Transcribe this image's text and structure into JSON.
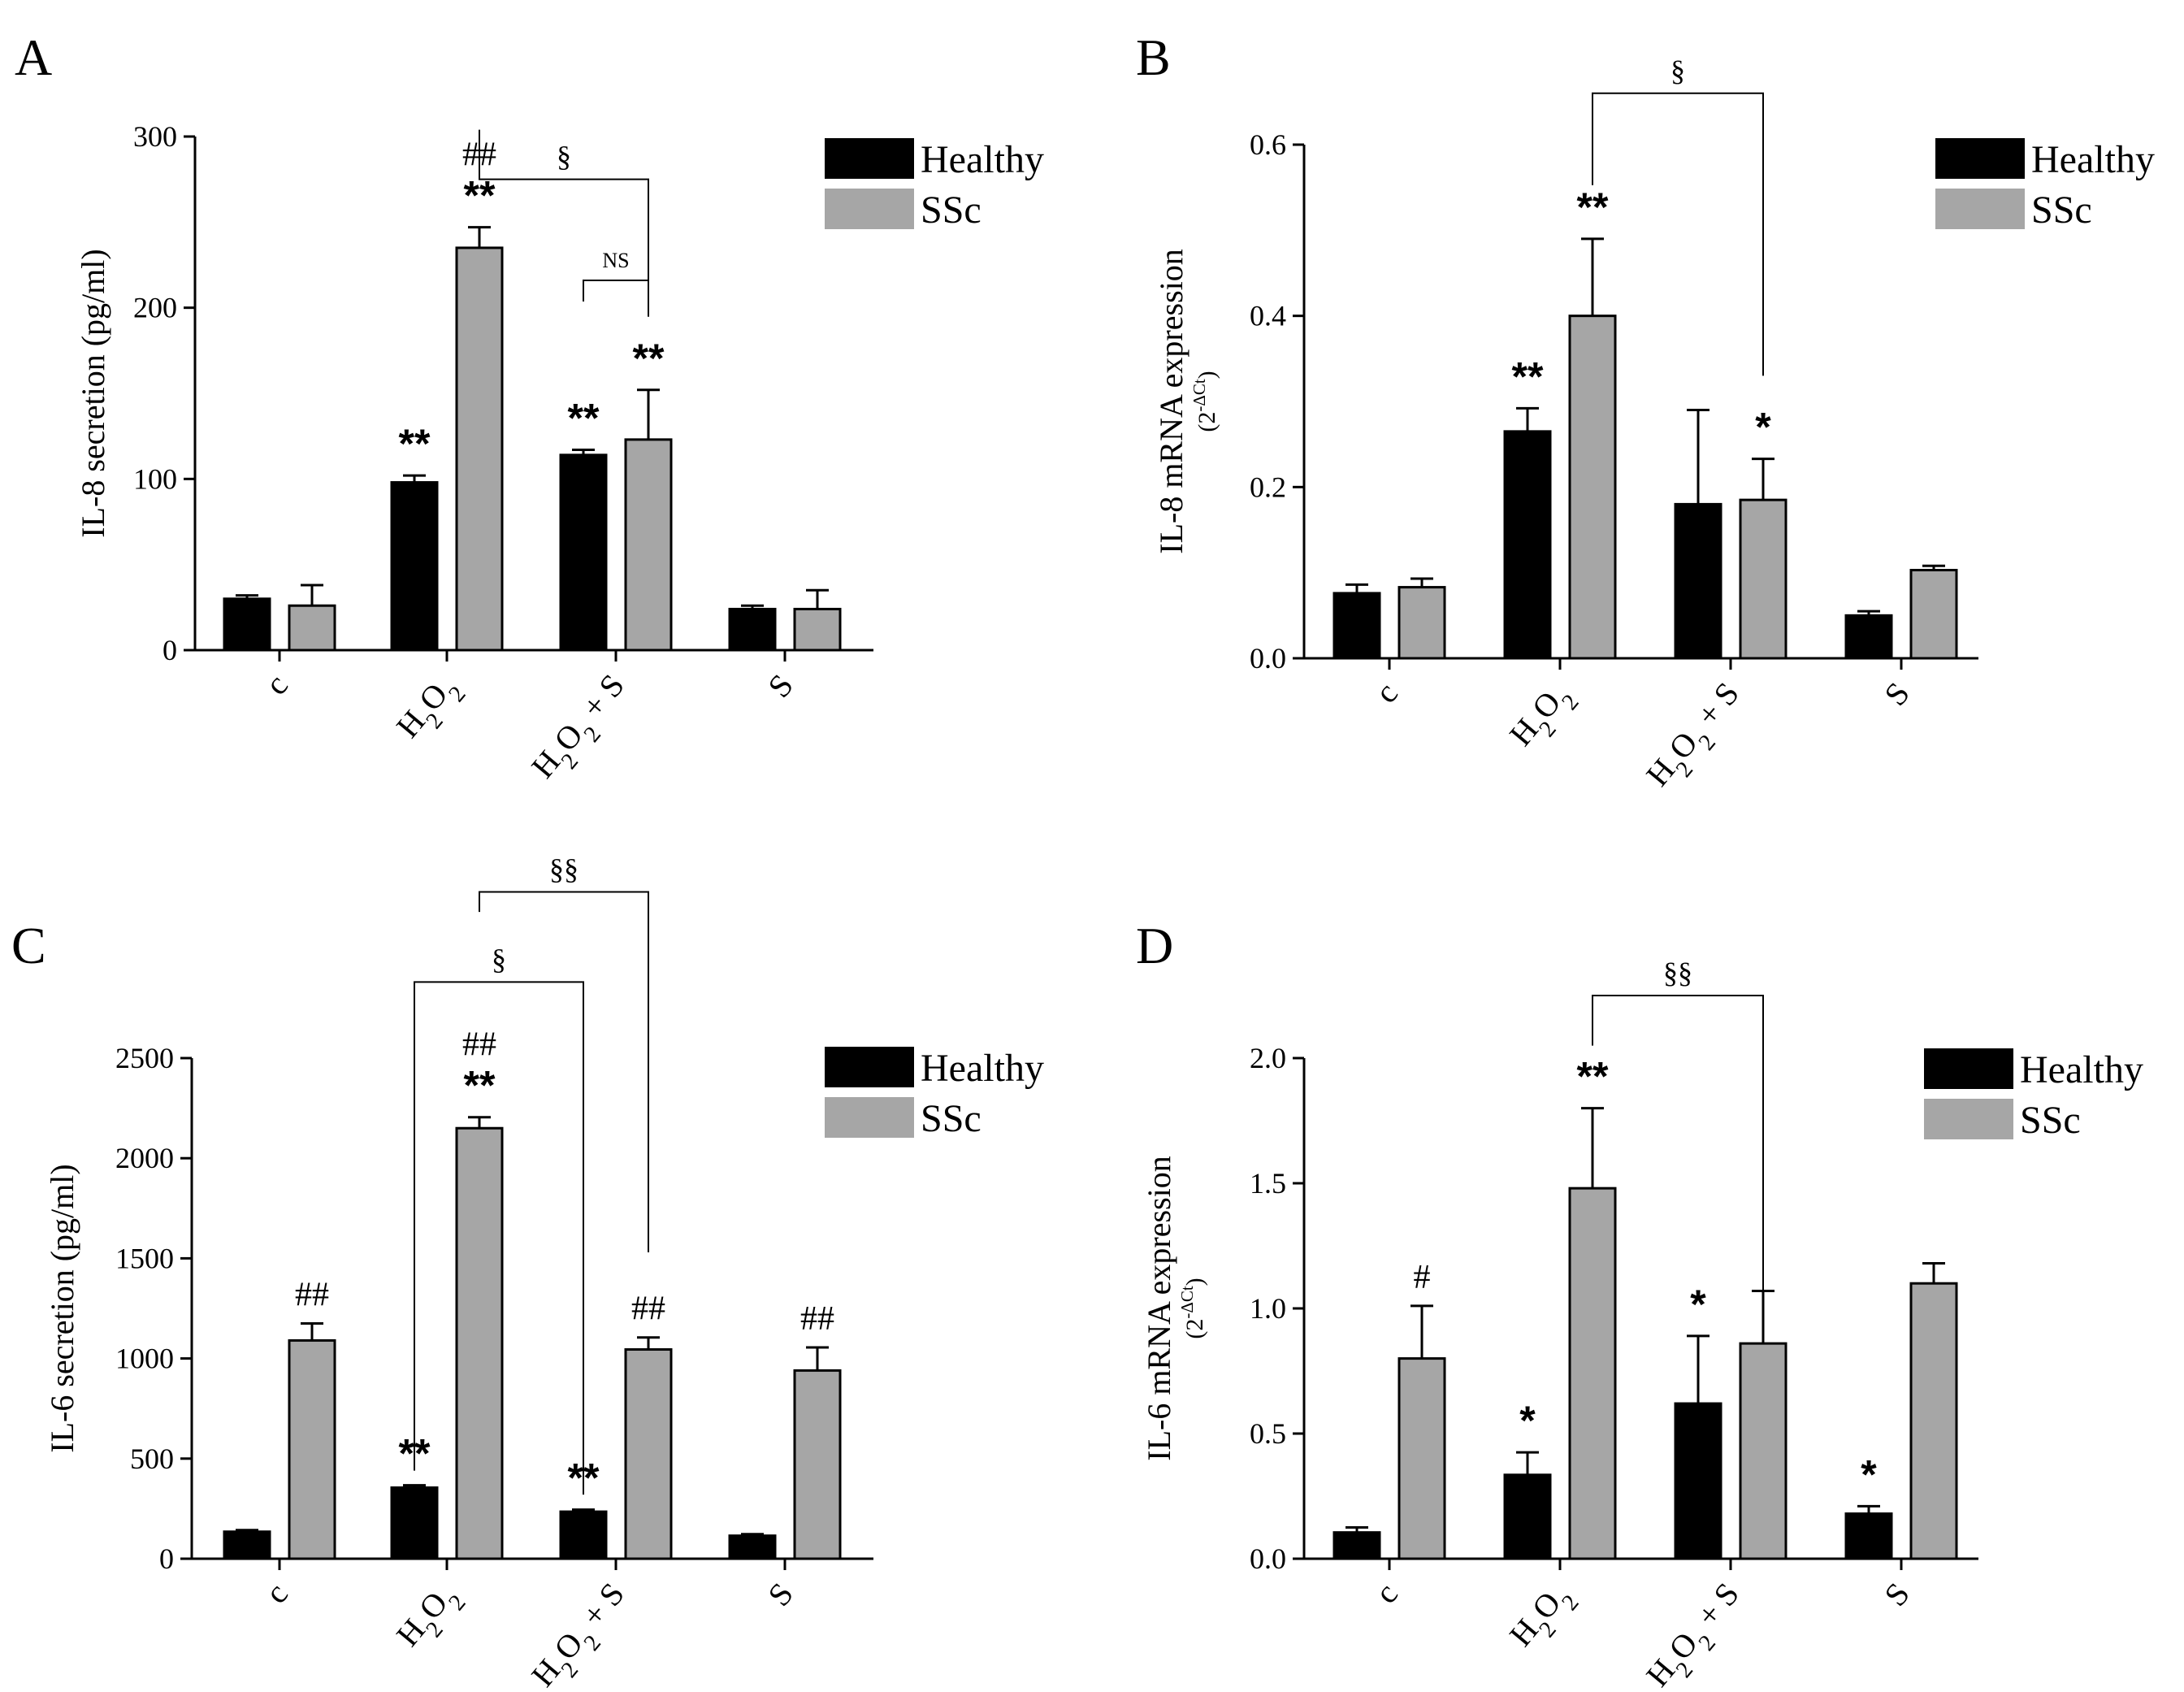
{
  "colors": {
    "healthy": "#000000",
    "ssc": "#a6a6a6",
    "axis": "#000000"
  },
  "legend": {
    "healthy": "Healthy",
    "ssc": "SSc"
  },
  "chart_data": [
    {
      "panel": "A",
      "type": "bar",
      "ylabel": "IL-8  secretion (pg/ml)",
      "ylabel_sub": "",
      "ylim": [
        0,
        300
      ],
      "yticks": [
        0,
        100,
        200,
        300
      ],
      "ytick_labels": [
        "0",
        "100",
        "200",
        "300"
      ],
      "categories": [
        "c",
        "H2O2",
        "H2O2 + S",
        "S"
      ],
      "series": [
        {
          "name": "Healthy",
          "values": [
            30,
            98,
            114,
            24
          ],
          "errors": [
            2,
            4,
            3,
            2
          ]
        },
        {
          "name": "SSc",
          "values": [
            26,
            235,
            123,
            24
          ],
          "errors": [
            12,
            12,
            29,
            11
          ]
        }
      ],
      "annotations": [
        {
          "cat": 1,
          "series": 0,
          "lines": [
            "**"
          ]
        },
        {
          "cat": 1,
          "series": 1,
          "lines": [
            "##",
            "**"
          ]
        },
        {
          "cat": 2,
          "series": 0,
          "lines": [
            "**"
          ]
        },
        {
          "cat": 2,
          "series": 1,
          "lines": [
            "**"
          ]
        }
      ],
      "brackets": [
        {
          "from": [
            1,
            1
          ],
          "to": [
            2,
            1
          ],
          "top": 275,
          "label": "§"
        },
        {
          "from": [
            2,
            0
          ],
          "to": [
            2,
            1
          ],
          "top": 216,
          "label": "NS"
        }
      ]
    },
    {
      "panel": "B",
      "type": "bar",
      "ylabel": "IL-8  mRNA expression",
      "ylabel_sub": "(2^-ΔCt)",
      "ylim": [
        0,
        0.6
      ],
      "yticks": [
        0,
        0.2,
        0.4,
        0.6
      ],
      "ytick_labels": [
        "0.0",
        "0.2",
        "0.4",
        "0.6"
      ],
      "categories": [
        "c",
        "H2O2",
        "H2O2 + S",
        "S"
      ],
      "series": [
        {
          "name": "Healthy",
          "values": [
            0.076,
            0.265,
            0.18,
            0.05
          ],
          "errors": [
            0.01,
            0.027,
            0.11,
            0.005
          ]
        },
        {
          "name": "SSc",
          "values": [
            0.083,
            0.4,
            0.185,
            0.103
          ],
          "errors": [
            0.01,
            0.09,
            0.048,
            0.005
          ]
        }
      ],
      "annotations": [
        {
          "cat": 1,
          "series": 0,
          "lines": [
            "**"
          ]
        },
        {
          "cat": 1,
          "series": 1,
          "lines": [
            "**"
          ]
        },
        {
          "cat": 2,
          "series": 1,
          "lines": [
            "*"
          ]
        }
      ],
      "brackets": [
        {
          "from": [
            1,
            1
          ],
          "to": [
            2,
            1
          ],
          "top": 0.66,
          "label": "§",
          "right_bottom": 0.33
        }
      ]
    },
    {
      "panel": "C",
      "type": "bar",
      "ylabel": "IL-6  secretion (pg/ml)",
      "ylabel_sub": "",
      "ylim": [
        0,
        2500
      ],
      "yticks": [
        0,
        500,
        1000,
        1500,
        2000,
        2500
      ],
      "ytick_labels": [
        "0",
        "500",
        "1000",
        "1500",
        "2000",
        "2500"
      ],
      "categories": [
        "c",
        "H2O2",
        "H2O2 + S",
        "S"
      ],
      "series": [
        {
          "name": "Healthy",
          "values": [
            135,
            355,
            235,
            115
          ],
          "errors": [
            8,
            12,
            10,
            8
          ]
        },
        {
          "name": "SSc",
          "values": [
            1090,
            2150,
            1045,
            940
          ],
          "errors": [
            85,
            55,
            60,
            115
          ]
        }
      ],
      "annotations": [
        {
          "cat": 0,
          "series": 1,
          "lines": [
            "##"
          ]
        },
        {
          "cat": 1,
          "series": 0,
          "lines": [
            "**"
          ]
        },
        {
          "cat": 1,
          "series": 1,
          "lines": [
            "##",
            "**"
          ]
        },
        {
          "cat": 2,
          "series": 0,
          "lines": [
            "**"
          ]
        },
        {
          "cat": 2,
          "series": 1,
          "lines": [
            "##"
          ]
        },
        {
          "cat": 3,
          "series": 1,
          "lines": [
            "##"
          ]
        }
      ],
      "brackets": [
        {
          "from": [
            1,
            0
          ],
          "to": [
            2,
            0
          ],
          "top": 2880,
          "label": "§",
          "left_bottom": 440,
          "right_bottom": 320
        },
        {
          "from": [
            1,
            1
          ],
          "to": [
            2,
            1
          ],
          "top": 3330,
          "label": "§§",
          "left_bottom": 3230,
          "right_bottom": 1530
        }
      ]
    },
    {
      "panel": "D",
      "type": "bar",
      "ylabel": "IL-6  mRNA expression",
      "ylabel_sub": "(2^-ΔCt)",
      "ylim": [
        0,
        2.0
      ],
      "yticks": [
        0,
        0.5,
        1.0,
        1.5,
        2.0
      ],
      "ytick_labels": [
        "0.0",
        "0.5",
        "1.0",
        "1.5",
        "2.0"
      ],
      "categories": [
        "c",
        "H2O2",
        "H2O2 + S",
        "S"
      ],
      "series": [
        {
          "name": "Healthy",
          "values": [
            0.105,
            0.335,
            0.62,
            0.18
          ],
          "errors": [
            0.02,
            0.09,
            0.27,
            0.03
          ]
        },
        {
          "name": "SSc",
          "values": [
            0.8,
            1.48,
            0.86,
            1.1
          ],
          "errors": [
            0.21,
            0.32,
            0.21,
            0.08
          ]
        }
      ],
      "annotations": [
        {
          "cat": 0,
          "series": 1,
          "lines": [
            "#"
          ]
        },
        {
          "cat": 1,
          "series": 0,
          "lines": [
            "*"
          ]
        },
        {
          "cat": 1,
          "series": 1,
          "lines": [
            "**"
          ]
        },
        {
          "cat": 2,
          "series": 0,
          "lines": [
            "*"
          ]
        },
        {
          "cat": 3,
          "series": 0,
          "lines": [
            "*"
          ]
        }
      ],
      "brackets": [
        {
          "from": [
            1,
            1
          ],
          "to": [
            2,
            1
          ],
          "top": 2.25,
          "label": "§§",
          "left_bottom": 2.05,
          "right_bottom": 1.03
        }
      ]
    }
  ]
}
